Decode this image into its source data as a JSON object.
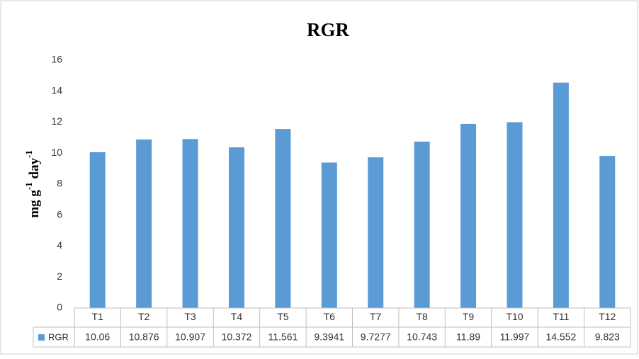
{
  "chart_data": {
    "type": "bar",
    "title": "RGR",
    "ylabel": {
      "parts": [
        "mg g",
        "-1",
        " day",
        "-1"
      ]
    },
    "categories": [
      "T1",
      "T2",
      "T3",
      "T4",
      "T5",
      "T6",
      "T7",
      "T8",
      "T9",
      "T10",
      "T11",
      "T12"
    ],
    "series": [
      {
        "name": "RGR",
        "color": "#5b9bd5",
        "values": [
          10.06,
          10.876,
          10.907,
          10.372,
          11.561,
          9.3941,
          9.7277,
          10.743,
          11.89,
          11.997,
          14.552,
          9.823
        ]
      }
    ],
    "ylim": [
      0,
      16
    ],
    "yticks": [
      0,
      2,
      4,
      6,
      8,
      10,
      12,
      14,
      16
    ],
    "grid": false,
    "data_table": true
  }
}
